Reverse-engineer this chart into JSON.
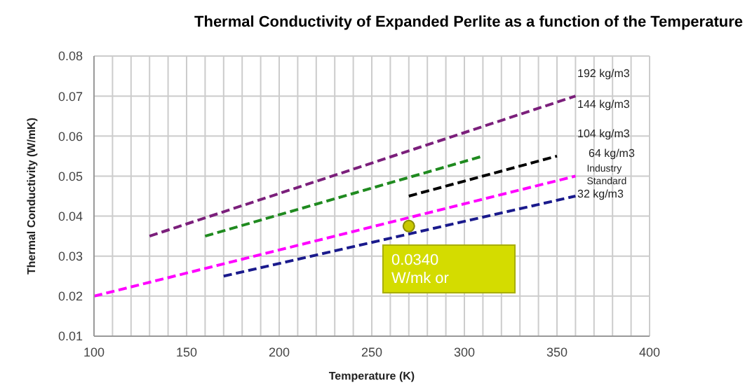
{
  "chart_data": {
    "type": "line",
    "title": "Thermal Conductivity of Expanded Perlite as a function of the Temperature",
    "xlabel": "Temperature (K)",
    "ylabel": "Thermal Conductivity (W/mK)",
    "xlim": [
      100,
      400
    ],
    "ylim": [
      0.01,
      0.08
    ],
    "xticks": [
      100,
      {
        "value": 110,
        "label": null
      },
      {
        "value": 120,
        "label": null
      },
      {
        "value": 130,
        "label": null
      },
      {
        "value": 140,
        "label": null
      },
      150,
      {
        "value": 160,
        "label": null
      },
      {
        "value": 170,
        "label": null
      },
      {
        "value": 180,
        "label": null
      },
      {
        "value": 190,
        "label": null
      },
      200,
      {
        "value": 210,
        "label": null
      },
      {
        "value": 220,
        "label": null
      },
      {
        "value": 230,
        "label": null
      },
      {
        "value": 240,
        "label": null
      },
      250,
      {
        "value": 260,
        "label": null
      },
      {
        "value": 270,
        "label": null
      },
      {
        "value": 280,
        "label": null
      },
      {
        "value": 290,
        "label": null
      },
      300,
      {
        "value": 310,
        "label": null
      },
      {
        "value": 320,
        "label": null
      },
      {
        "value": 330,
        "label": null
      },
      {
        "value": 340,
        "label": null
      },
      350,
      {
        "value": 360,
        "label": null
      },
      {
        "value": 370,
        "label": null
      },
      {
        "value": 380,
        "label": null
      },
      {
        "value": 390,
        "label": null
      },
      400
    ],
    "yticks": [
      {
        "value": 0.01,
        "label": "0.01"
      },
      {
        "value": 0.02,
        "label": "0.02"
      },
      {
        "value": 0.03,
        "label": "0.03"
      },
      {
        "value": 0.04,
        "label": "0.04"
      },
      {
        "value": 0.05,
        "label": "0.05"
      },
      {
        "value": 0.06,
        "label": "0.06"
      },
      {
        "value": 0.07,
        "label": "0.07"
      },
      {
        "value": 0.08,
        "label": "0.08"
      }
    ],
    "grid": true,
    "line_style": "dashed",
    "marker": "none",
    "series": [
      {
        "name": "192 kg/m3",
        "color": "#7b1f7b",
        "x": [
          130,
          360
        ],
        "values": [
          0.035,
          0.07
        ]
      },
      {
        "name": "144 kg/m3",
        "color": "#1f8a1f",
        "x": [
          160,
          310
        ],
        "values": [
          0.035,
          0.055
        ]
      },
      {
        "name": "104 kg/m3",
        "color": "#000000",
        "x": [
          270,
          350
        ],
        "values": [
          0.045,
          0.055
        ]
      },
      {
        "name": "64 kg/m3",
        "color": "#ff00ff",
        "x": [
          100,
          360
        ],
        "values": [
          0.02,
          0.05
        ]
      },
      {
        "name": "32 kg/m3",
        "color": "#1a1a8c",
        "x": [
          170,
          360
        ],
        "values": [
          0.025,
          0.045
        ]
      },
      {
        "type": "scatter",
        "marker": "circle",
        "color": "#c8c800",
        "x": [
          270
        ],
        "values": [
          0.0375
        ]
      }
    ],
    "annotations": [
      {
        "text": "Industry Standard",
        "x": 360,
        "y": 0.05
      },
      "0.0340 W/mk or"
    ]
  }
}
